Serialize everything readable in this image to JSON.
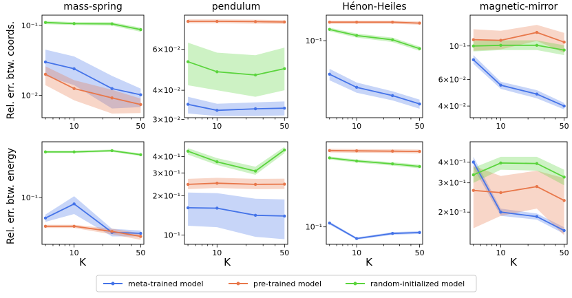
{
  "chart_data": {
    "type": "line",
    "x_label": "K",
    "x": [
      5,
      10,
      25,
      50
    ],
    "x_ticks": [
      10,
      50
    ],
    "row_labels": [
      "Rel. err. btw. coords.",
      "Rel. err. btw. energy"
    ],
    "legend": {
      "position": "bottom-center",
      "entries": [
        "meta-trained model",
        "pre-trained model",
        "random-initialized model"
      ]
    },
    "series_colors": {
      "meta": "#4473e8",
      "pre": "#e8774a",
      "rand": "#5ad43c"
    },
    "panels": [
      {
        "id": "mass-spring-coords",
        "title": "mass-spring",
        "ylim": [
          0.0048,
          0.14
        ],
        "yticks": [
          {
            "v": 0.1,
            "l": "10⁻¹"
          },
          {
            "v": 0.01,
            "l": "10⁻²"
          }
        ],
        "series": [
          {
            "name": "meta-trained model",
            "values": [
              0.03,
              0.024,
              0.0125,
              0.0102
            ],
            "lower": [
              0.019,
              0.014,
              0.0065,
              0.0068
            ],
            "upper": [
              0.045,
              0.036,
              0.019,
              0.0125
            ]
          },
          {
            "name": "pre-trained model",
            "values": [
              0.02,
              0.0125,
              0.0092,
              0.0074
            ],
            "lower": [
              0.014,
              0.0085,
              0.0055,
              0.0056
            ],
            "upper": [
              0.026,
              0.0165,
              0.012,
              0.009
            ]
          },
          {
            "name": "random-initialized model",
            "values": [
              0.11,
              0.106,
              0.105,
              0.087
            ],
            "lower": [
              0.104,
              0.101,
              0.099,
              0.081
            ],
            "upper": [
              0.116,
              0.111,
              0.111,
              0.093
            ]
          }
        ]
      },
      {
        "id": "pendulum-coords",
        "title": "pendulum",
        "ylim": [
          0.0305,
          0.084
        ],
        "yticks": [
          {
            "v": 0.06,
            "l": "6×10⁻²"
          },
          {
            "v": 0.04,
            "l": "4×10⁻²"
          },
          {
            "v": 0.03,
            "l": "3×10⁻²"
          }
        ],
        "series": [
          {
            "name": "meta-trained model",
            "values": [
              0.0348,
              0.0328,
              0.0333,
              0.0335
            ],
            "lower": [
              0.0318,
              0.031,
              0.031,
              0.0312
            ],
            "upper": [
              0.0375,
              0.035,
              0.0355,
              0.0358
            ]
          },
          {
            "name": "pre-trained model",
            "values": [
              0.079,
              0.079,
              0.0788,
              0.0785
            ],
            "lower": [
              0.0775,
              0.0775,
              0.0772,
              0.077
            ],
            "upper": [
              0.0805,
              0.0805,
              0.0803,
              0.08
            ]
          },
          {
            "name": "random-initialized model",
            "values": [
              0.053,
              0.048,
              0.0465,
              0.0495
            ],
            "lower": [
              0.042,
              0.04,
              0.0375,
              0.04
            ],
            "upper": [
              0.064,
              0.058,
              0.0565,
              0.061
            ]
          }
        ]
      },
      {
        "id": "henon-heiles-coords",
        "title": "Hénon-Heiles",
        "ylim": [
          0.0185,
          0.175
        ],
        "yticks": [
          {
            "v": 0.1,
            "l": "10⁻¹"
          }
        ],
        "series": [
          {
            "name": "meta-trained model",
            "values": [
              0.048,
              0.036,
              0.03,
              0.025
            ],
            "lower": [
              0.042,
              0.032,
              0.027,
              0.0225
            ],
            "upper": [
              0.054,
              0.04,
              0.033,
              0.0275
            ]
          },
          {
            "name": "pre-trained model",
            "values": [
              0.15,
              0.15,
              0.15,
              0.147
            ],
            "lower": [
              0.145,
              0.145,
              0.145,
              0.142
            ],
            "upper": [
              0.155,
              0.155,
              0.155,
              0.152
            ]
          },
          {
            "name": "random-initialized model",
            "values": [
              0.128,
              0.112,
              0.102,
              0.084
            ],
            "lower": [
              0.123,
              0.107,
              0.097,
              0.08
            ],
            "upper": [
              0.133,
              0.117,
              0.107,
              0.088
            ]
          }
        ]
      },
      {
        "id": "magnetic-mirror-coords",
        "title": "magnetic-mirror",
        "ylim": [
          0.0335,
          0.16
        ],
        "yticks": [
          {
            "v": 0.1,
            "l": "10⁻¹"
          },
          {
            "v": 0.06,
            "l": "6×10⁻²"
          },
          {
            "v": 0.04,
            "l": "4×10⁻²"
          }
        ],
        "series": [
          {
            "name": "meta-trained model",
            "values": [
              0.081,
              0.055,
              0.048,
              0.04
            ],
            "lower": [
              0.076,
              0.052,
              0.045,
              0.038
            ],
            "upper": [
              0.087,
              0.058,
              0.051,
              0.042
            ]
          },
          {
            "name": "pre-trained model",
            "values": [
              0.11,
              0.109,
              0.123,
              0.106
            ],
            "lower": [
              0.093,
              0.095,
              0.108,
              0.09
            ],
            "upper": [
              0.129,
              0.126,
              0.138,
              0.122
            ]
          },
          {
            "name": "random-initialized model",
            "values": [
              0.1,
              0.101,
              0.101,
              0.094
            ],
            "lower": [
              0.092,
              0.094,
              0.094,
              0.087
            ],
            "upper": [
              0.108,
              0.109,
              0.109,
              0.101
            ]
          }
        ]
      },
      {
        "id": "mass-spring-energy",
        "title": "",
        "ylim": [
          0.0235,
          0.56
        ],
        "yticks": [
          {
            "v": 0.1,
            "l": "10⁻¹"
          }
        ],
        "series": [
          {
            "name": "meta-trained model",
            "values": [
              0.053,
              0.082,
              0.034,
              0.033
            ],
            "lower": [
              0.047,
              0.06,
              0.03,
              0.03
            ],
            "upper": [
              0.059,
              0.104,
              0.038,
              0.036
            ]
          },
          {
            "name": "pre-trained model",
            "values": [
              0.041,
              0.041,
              0.035,
              0.03
            ],
            "lower": [
              0.039,
              0.039,
              0.032,
              0.027
            ],
            "upper": [
              0.043,
              0.043,
              0.038,
              0.033
            ]
          },
          {
            "name": "random-initialized model",
            "values": [
              0.41,
              0.41,
              0.425,
              0.375
            ],
            "lower": [
              0.395,
              0.395,
              0.41,
              0.36
            ],
            "upper": [
              0.425,
              0.425,
              0.44,
              0.39
            ]
          }
        ]
      },
      {
        "id": "pendulum-energy",
        "title": "",
        "ylim": [
          0.085,
          0.52
        ],
        "yticks": [
          {
            "v": 0.4,
            "l": "4×10⁻¹"
          },
          {
            "v": 0.3,
            "l": "3×10⁻¹"
          },
          {
            "v": 0.2,
            "l": "2×10⁻¹"
          },
          {
            "v": 0.1,
            "l": "10⁻¹"
          }
        ],
        "series": [
          {
            "name": "meta-trained model",
            "values": [
              0.162,
              0.161,
              0.142,
              0.14
            ],
            "lower": [
              0.118,
              0.115,
              0.097,
              0.093
            ],
            "upper": [
              0.212,
              0.21,
              0.19,
              0.188
            ]
          },
          {
            "name": "pre-trained model",
            "values": [
              0.245,
              0.25,
              0.245,
              0.246
            ],
            "lower": [
              0.225,
              0.23,
              0.225,
              0.226
            ],
            "upper": [
              0.27,
              0.275,
              0.27,
              0.271
            ]
          },
          {
            "name": "random-initialized model",
            "values": [
              0.44,
              0.365,
              0.31,
              0.45
            ],
            "lower": [
              0.415,
              0.345,
              0.29,
              0.425
            ],
            "upper": [
              0.465,
              0.39,
              0.335,
              0.475
            ]
          }
        ]
      },
      {
        "id": "henon-heiles-energy",
        "title": "",
        "ylim": [
          0.065,
          0.82
        ],
        "yticks": [
          {
            "v": 0.1,
            "l": "10⁻¹"
          }
        ],
        "series": [
          {
            "name": "meta-trained model",
            "values": [
              0.11,
              0.075,
              0.085,
              0.087
            ],
            "lower": [
              0.106,
              0.073,
              0.082,
              0.084
            ],
            "upper": [
              0.114,
              0.077,
              0.088,
              0.09
            ]
          },
          {
            "name": "pre-trained model",
            "values": [
              0.66,
              0.655,
              0.65,
              0.645
            ],
            "lower": [
              0.63,
              0.625,
              0.62,
              0.615
            ],
            "upper": [
              0.69,
              0.685,
              0.68,
              0.675
            ]
          },
          {
            "name": "random-initialized model",
            "values": [
              0.55,
              0.51,
              0.475,
              0.445
            ],
            "lower": [
              0.53,
              0.49,
              0.455,
              0.425
            ],
            "upper": [
              0.57,
              0.53,
              0.495,
              0.465
            ]
          }
        ]
      },
      {
        "id": "magnetic-mirror-energy",
        "title": "",
        "ylim": [
          0.128,
          0.53
        ],
        "yticks": [
          {
            "v": 0.4,
            "l": "4×10⁻¹"
          },
          {
            "v": 0.3,
            "l": "3×10⁻¹"
          },
          {
            "v": 0.2,
            "l": "2×10⁻¹"
          }
        ],
        "series": [
          {
            "name": "meta-trained model",
            "values": [
              0.4,
              0.2,
              0.188,
              0.155
            ],
            "lower": [
              0.37,
              0.19,
              0.18,
              0.148
            ],
            "upper": [
              0.43,
              0.21,
              0.196,
              0.162
            ]
          },
          {
            "name": "pre-trained model",
            "values": [
              0.27,
              0.262,
              0.285,
              0.235
            ],
            "lower": [
              0.16,
              0.19,
              0.21,
              0.145
            ],
            "upper": [
              0.38,
              0.33,
              0.355,
              0.32
            ]
          },
          {
            "name": "random-initialized model",
            "values": [
              0.335,
              0.395,
              0.392,
              0.325
            ],
            "lower": [
              0.3,
              0.36,
              0.355,
              0.29
            ],
            "upper": [
              0.37,
              0.43,
              0.43,
              0.36
            ]
          }
        ]
      }
    ]
  }
}
